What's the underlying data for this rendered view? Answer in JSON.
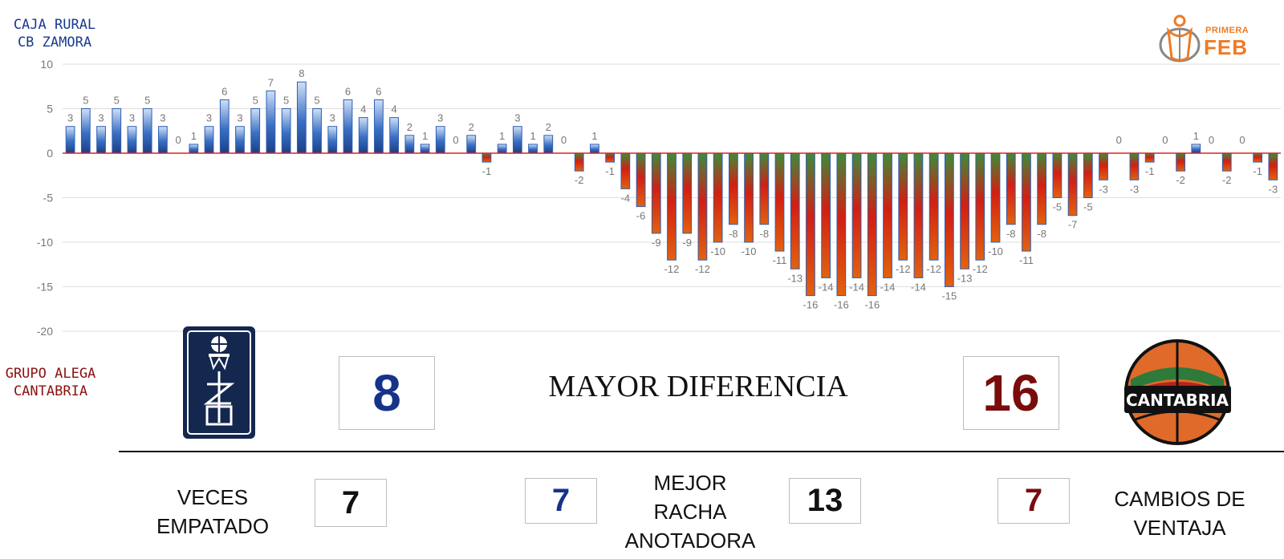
{
  "team_a": {
    "line1": "CAJA RURAL",
    "line2": "CB ZAMORA"
  },
  "team_b": {
    "line1": "GRUPO ALEGA",
    "line2": "CANTABRIA"
  },
  "feb_logo": {
    "small": "PRIMERA",
    "big": "FEB"
  },
  "cantabria_logo_text": "CANTABRIA",
  "colors": {
    "team_a": "#16338a",
    "team_b": "#7a0c0c",
    "positive_bar": "#3a6fc4",
    "negative_bar_green": "#3f8a3a",
    "negative_bar_red": "#d21f12",
    "zero_line": "#e02020",
    "feb_orange": "#f07a23"
  },
  "stats": {
    "max_diff_title": "MAYOR DIFERENCIA",
    "max_diff_a": "8",
    "max_diff_b": "16",
    "ties_label_1": "VECES",
    "ties_label_2": "EMPATADO",
    "ties_value": "7",
    "run_label_1": "MEJOR",
    "run_label_2": "RACHA",
    "run_label_3": "ANOTADORA",
    "run_a": "7",
    "run_b": "13",
    "lead_changes_label_1": "CAMBIOS DE",
    "lead_changes_label_2": "VENTAJA",
    "lead_changes_value": "7"
  },
  "chart_data": {
    "type": "bar",
    "title": "",
    "xlabel": "",
    "ylabel": "",
    "ylim": [
      -20,
      10
    ],
    "yticks": [
      10,
      5,
      0,
      -5,
      -10,
      -15,
      -20
    ],
    "grid": true,
    "values": [
      3,
      5,
      3,
      5,
      3,
      5,
      3,
      0,
      1,
      3,
      6,
      3,
      5,
      7,
      5,
      8,
      5,
      3,
      6,
      4,
      6,
      4,
      2,
      1,
      3,
      0,
      2,
      -1,
      1,
      3,
      1,
      2,
      0,
      -2,
      1,
      -1,
      -4,
      -6,
      -9,
      -12,
      -9,
      -12,
      -10,
      -8,
      -10,
      -8,
      -11,
      -13,
      -16,
      -14,
      -16,
      -14,
      -16,
      -14,
      -12,
      -14,
      -12,
      -15,
      -13,
      -12,
      -10,
      -8,
      -11,
      -8,
      -5,
      -7,
      -5,
      -3,
      0,
      -3,
      -1,
      0,
      -2,
      1,
      0,
      -2,
      0,
      -1,
      -3
    ]
  }
}
